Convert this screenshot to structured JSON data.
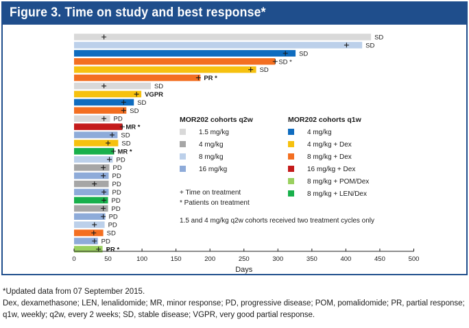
{
  "figure_title": "Figure 3. Time on study and best response*",
  "chart_data": {
    "type": "bar",
    "orientation": "horizontal",
    "title": "Figure 3. Time on study and best response*",
    "xlabel": "Days",
    "ylabel": "",
    "xlim": [
      0,
      500
    ],
    "xticks": [
      0,
      50,
      100,
      150,
      200,
      250,
      300,
      350,
      400,
      450,
      500
    ],
    "grid": false,
    "colors": {
      "q2w_1.5": "#d9d9d9",
      "q2w_4": "#a6a6a6",
      "q2w_8": "#bcd0ea",
      "q2w_16": "#8eabd9",
      "q1w_4": "#0f6cbf",
      "q1w_4dex": "#f6c10f",
      "q1w_8dex": "#f36f21",
      "q1w_16dex": "#c41b1b",
      "q1w_8pom": "#9ad060",
      "q1w_8len": "#18b04b"
    },
    "patients": [
      {
        "days": 437,
        "cohort": "q2w_1.5",
        "response": "SD",
        "tod": 44,
        "ongoing": false
      },
      {
        "days": 424,
        "cohort": "q2w_8",
        "response": "SD",
        "tod": 401,
        "ongoing": false
      },
      {
        "days": 326,
        "cohort": "q1w_4",
        "response": "SD",
        "tod": 311,
        "ongoing": false
      },
      {
        "days": 296,
        "cohort": "q1w_8dex",
        "response": "SD",
        "tod": 296,
        "ongoing": true
      },
      {
        "days": 268,
        "cohort": "q1w_4dex",
        "response": "SD",
        "tod": 260,
        "ongoing": false
      },
      {
        "days": 186,
        "cohort": "q1w_8dex",
        "response": "PR",
        "tod": 183,
        "ongoing": true
      },
      {
        "days": 113,
        "cohort": "q2w_1.5",
        "response": "SD",
        "tod": 44,
        "ongoing": false
      },
      {
        "days": 99,
        "cohort": "q1w_4dex",
        "response": "VGPR",
        "tod": 92,
        "ongoing": false
      },
      {
        "days": 88,
        "cohort": "q1w_4",
        "response": "SD",
        "tod": 73,
        "ongoing": false
      },
      {
        "days": 77,
        "cohort": "q1w_8dex",
        "response": "SD",
        "tod": 73,
        "ongoing": false
      },
      {
        "days": 53,
        "cohort": "q2w_1.5",
        "response": "PD",
        "tod": 44,
        "ongoing": false
      },
      {
        "days": 71,
        "cohort": "q1w_16dex",
        "response": "MR",
        "tod": 71,
        "ongoing": true
      },
      {
        "days": 64,
        "cohort": "q2w_16",
        "response": "SD",
        "tod": 56,
        "ongoing": false
      },
      {
        "days": 65,
        "cohort": "q1w_4dex",
        "response": "SD",
        "tod": 50,
        "ongoing": false
      },
      {
        "days": 59,
        "cohort": "q1w_8len",
        "response": "MR",
        "tod": 58,
        "ongoing": true
      },
      {
        "days": 57,
        "cohort": "q2w_8",
        "response": "PD",
        "tod": 52,
        "ongoing": false
      },
      {
        "days": 52,
        "cohort": "q2w_4",
        "response": "PD",
        "tod": 43,
        "ongoing": false
      },
      {
        "days": 51,
        "cohort": "q2w_16",
        "response": "PD",
        "tod": 43,
        "ongoing": false
      },
      {
        "days": 51,
        "cohort": "q2w_4",
        "response": "PD",
        "tod": 30,
        "ongoing": false
      },
      {
        "days": 51,
        "cohort": "q2w_16",
        "response": "PD",
        "tod": 44,
        "ongoing": false
      },
      {
        "days": 50,
        "cohort": "q1w_8len",
        "response": "PD",
        "tod": 44,
        "ongoing": false
      },
      {
        "days": 50,
        "cohort": "q2w_4",
        "response": "PD",
        "tod": 43,
        "ongoing": false
      },
      {
        "days": 46,
        "cohort": "q2w_16",
        "response": "PD",
        "tod": 43,
        "ongoing": false
      },
      {
        "days": 45,
        "cohort": "q2w_8",
        "response": "PD",
        "tod": 30,
        "ongoing": false
      },
      {
        "days": 43,
        "cohort": "q1w_8dex",
        "response": "SD",
        "tod": 29,
        "ongoing": false
      },
      {
        "days": 35,
        "cohort": "q2w_16",
        "response": "PD",
        "tod": 30,
        "ongoing": false
      },
      {
        "days": 42,
        "cohort": "q1w_8pom",
        "response": "PR",
        "tod": 36,
        "ongoing": true
      }
    ],
    "legend_q2w": {
      "title": "MOR202 cohorts q2w",
      "entries": [
        {
          "label": "1.5 mg/kg",
          "key": "q2w_1.5"
        },
        {
          "label": "4  mg/kg",
          "key": "q2w_4"
        },
        {
          "label": "8  mg/kg",
          "key": "q2w_8"
        },
        {
          "label": "16  mg/kg",
          "key": "q2w_16"
        }
      ]
    },
    "legend_q1w": {
      "title": "MOR202 cohorts q1w",
      "entries": [
        {
          "label": "4  mg/kg",
          "key": "q1w_4"
        },
        {
          "label": "4  mg/kg + Dex",
          "key": "q1w_4dex"
        },
        {
          "label": "8  mg/kg + Dex",
          "key": "q1w_8dex"
        },
        {
          "label": "16  mg/kg + Dex",
          "key": "q1w_16dex"
        },
        {
          "label": "8  mg/kg + POM/Dex",
          "key": "q1w_8pom"
        },
        {
          "label": "8  mg/kg + LEN/Dex",
          "key": "q1w_8len"
        }
      ]
    },
    "symbol_notes": [
      "+ Time on treatment",
      "*  Patients on treatment"
    ],
    "cohort_note": "1.5 and 4 mg/kg q2w cohorts received two treatment cycles only"
  },
  "footnotes": {
    "line1": "*Updated data from 07 September 2015.",
    "line2": "Dex, dexamethasone; LEN, lenalidomide; MR, minor response; PD, progressive disease; POM, pomalidomide; PR, partial response; q1w, weekly; q2w, every 2 weeks; SD, stable disease; VGPR, very good partial response."
  }
}
